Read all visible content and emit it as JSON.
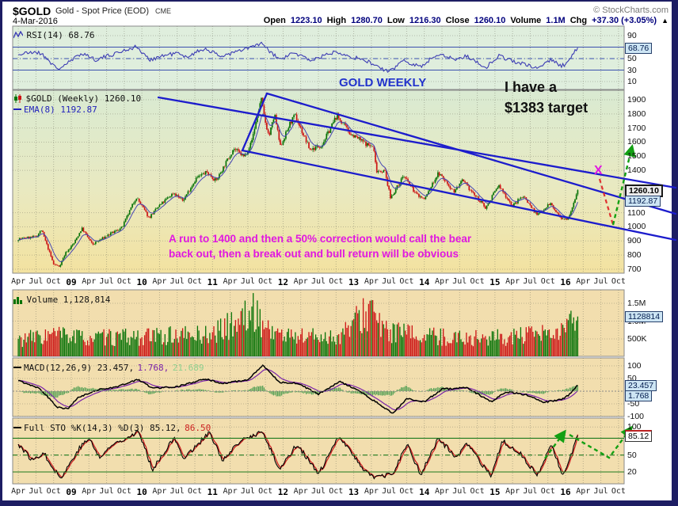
{
  "header": {
    "symbol": "$GOLD",
    "title": "Gold - Spot Price (EOD)",
    "exchange": "CME",
    "source": "© StockCharts.com",
    "date": "4-Mar-2016",
    "quote": {
      "open_label": "Open",
      "open_value": "1223.10",
      "high_label": "High",
      "high_value": "1280.70",
      "low_label": "Low",
      "low_value": "1216.30",
      "close_label": "Close",
      "close_value": "1260.10",
      "volume_label": "Volume",
      "volume_value": "1.1M",
      "chg_label": "Chg",
      "chg_value": "+37.30 (+3.05%)",
      "chg_arrow": "▲"
    }
  },
  "panels": {
    "rsi": {
      "legend": "RSI(14) 68.76",
      "callout": "68.76",
      "yticks": [
        {
          "label": "90",
          "v": 90
        },
        {
          "label": "50",
          "v": 50
        },
        {
          "label": "30",
          "v": 30
        },
        {
          "label": "10",
          "v": 10
        }
      ]
    },
    "main": {
      "legend_symbol": "$GOLD (Weekly) 1260.10",
      "legend_ema": "EMA(8) 1192.87",
      "callout_close": "1260.10",
      "callout_ema": "1192.87",
      "yticks": [
        {
          "label": "1900",
          "v": 1900
        },
        {
          "label": "1800",
          "v": 1800
        },
        {
          "label": "1700",
          "v": 1700
        },
        {
          "label": "1600",
          "v": 1600
        },
        {
          "label": "1500",
          "v": 1500
        },
        {
          "label": "1400",
          "v": 1400
        },
        {
          "label": "1100",
          "v": 1100
        },
        {
          "label": "1000",
          "v": 1000
        },
        {
          "label": "900",
          "v": 900
        },
        {
          "label": "800",
          "v": 800
        },
        {
          "label": "700",
          "v": 700
        }
      ]
    },
    "volume": {
      "legend": "Volume 1,128,814",
      "callout": "1128814",
      "yticks": [
        {
          "label": "1.5M",
          "v": 1500000
        },
        {
          "label": "1.0M",
          "v": 1000000
        },
        {
          "label": "500K",
          "v": 500000
        }
      ]
    },
    "macd": {
      "legend_main": "MACD(12,26,9) 23.457,",
      "legend_signal": "1.768,",
      "legend_hist": "21.689",
      "callout_macd": "23.457",
      "callout_signal": "1.768",
      "yticks": [
        {
          "label": "100",
          "v": 100
        },
        {
          "label": "50",
          "v": 50
        },
        {
          "label": "-50",
          "v": -50
        },
        {
          "label": "-100",
          "v": -100
        }
      ]
    },
    "sto": {
      "legend_main": "Full STO %K(14,3) %D(3) 85.12,",
      "legend_d": "86.50",
      "callout": "85.12",
      "yticks": [
        {
          "label": "100",
          "v": 100
        },
        {
          "label": "50",
          "v": 50
        },
        {
          "label": "20",
          "v": 20
        }
      ]
    }
  },
  "annotations": {
    "gold_weekly": "GOLD WEEKLY",
    "target_line1": "I have a",
    "target_line2": "$1383 target",
    "note_line1": "A run to 1400 and then a 50% correction would call the bear",
    "note_line2": "back out, then a break out and bull return will be obvious",
    "x_marker": "X"
  },
  "xaxis": {
    "start": 2008.25,
    "step": 0.25,
    "labels": [
      "Apr",
      "Jul",
      "Oct",
      "09",
      "Apr",
      "Jul",
      "Oct",
      "10",
      "Apr",
      "Jul",
      "Oct",
      "11",
      "Apr",
      "Jul",
      "Oct",
      "12",
      "Apr",
      "Jul",
      "Oct",
      "13",
      "Apr",
      "Jul",
      "Oct",
      "14",
      "Apr",
      "Jul",
      "Oct",
      "15",
      "Apr",
      "Jul",
      "Oct",
      "16",
      "Apr",
      "Jul",
      "Oct"
    ]
  },
  "colors": {
    "candle_up": "#067206",
    "candle_down": "#cc1414",
    "ema": "#4646b4",
    "channel_blue": "#1c1ccc",
    "rsi_line": "#3c3cb4",
    "macd_line": "#000000",
    "macd_signal": "#7a22aa",
    "macd_hist": "#55a055",
    "sto_k": "#000000",
    "sto_d": "#cc2222",
    "annotation_magenta": "#e018e0",
    "annotation_blue": "#2233cc",
    "arrow_green": "#13a013",
    "arrow_red": "#e03030",
    "panel_green": "#dfeedd",
    "panel_tan": "#f2deae",
    "main_top": "#d9ead2",
    "main_bottom": "#f3e2a0"
  },
  "chart_data": [
    {
      "id": "price",
      "type": "candlestick",
      "title": "$GOLD Gold - Spot Price (EOD) Weekly",
      "x_range": [
        2008.17,
        2016.83
      ],
      "ylim": [
        672,
        1967
      ],
      "yticks": [
        700,
        800,
        900,
        1000,
        1100,
        1400,
        1500,
        1600,
        1700,
        1800,
        1900
      ],
      "last_close": 1260.1,
      "ema8_last": 1192.87,
      "keypoints": [
        [
          2008.25,
          915
        ],
        [
          2008.5,
          930
        ],
        [
          2008.58,
          978
        ],
        [
          2008.75,
          735
        ],
        [
          2008.83,
          720
        ],
        [
          2008.92,
          815
        ],
        [
          2009.04,
          885
        ],
        [
          2009.15,
          990
        ],
        [
          2009.3,
          875
        ],
        [
          2009.5,
          935
        ],
        [
          2009.72,
          995
        ],
        [
          2009.92,
          1212
        ],
        [
          2010.1,
          1065
        ],
        [
          2010.25,
          1150
        ],
        [
          2010.45,
          1242
        ],
        [
          2010.58,
          1185
        ],
        [
          2010.77,
          1345
        ],
        [
          2010.92,
          1388
        ],
        [
          2011.05,
          1325
        ],
        [
          2011.3,
          1555
        ],
        [
          2011.45,
          1495
        ],
        [
          2011.55,
          1598
        ],
        [
          2011.69,
          1908
        ],
        [
          2011.74,
          1760
        ],
        [
          2011.8,
          1640
        ],
        [
          2011.88,
          1795
        ],
        [
          2011.96,
          1565
        ],
        [
          2012.1,
          1735
        ],
        [
          2012.17,
          1788
        ],
        [
          2012.38,
          1545
        ],
        [
          2012.55,
          1580
        ],
        [
          2012.76,
          1788
        ],
        [
          2012.95,
          1662
        ],
        [
          2013.2,
          1580
        ],
        [
          2013.28,
          1565
        ],
        [
          2013.32,
          1400
        ],
        [
          2013.44,
          1395
        ],
        [
          2013.52,
          1205
        ],
        [
          2013.65,
          1310
        ],
        [
          2013.7,
          1365
        ],
        [
          2013.88,
          1235
        ],
        [
          2014.0,
          1195
        ],
        [
          2014.2,
          1382
        ],
        [
          2014.42,
          1250
        ],
        [
          2014.54,
          1325
        ],
        [
          2014.73,
          1215
        ],
        [
          2014.87,
          1135
        ],
        [
          2015.05,
          1295
        ],
        [
          2015.25,
          1148
        ],
        [
          2015.4,
          1222
        ],
        [
          2015.6,
          1082
        ],
        [
          2015.78,
          1168
        ],
        [
          2015.95,
          1046
        ],
        [
          2016.03,
          1062
        ],
        [
          2016.08,
          1120
        ],
        [
          2016.17,
          1260.1
        ]
      ]
    },
    {
      "id": "rsi",
      "type": "line",
      "title": "RSI(14)",
      "x_range": [
        2008.17,
        2016.83
      ],
      "ylim": [
        0,
        100
      ],
      "levels": [
        70,
        50,
        30
      ],
      "last": 68.76,
      "keypoints": [
        [
          2008.25,
          57
        ],
        [
          2008.5,
          62
        ],
        [
          2008.62,
          55
        ],
        [
          2008.8,
          31
        ],
        [
          2009.0,
          46
        ],
        [
          2009.15,
          60
        ],
        [
          2009.35,
          48
        ],
        [
          2009.6,
          58
        ],
        [
          2009.92,
          71
        ],
        [
          2010.1,
          48
        ],
        [
          2010.3,
          55
        ],
        [
          2010.5,
          60
        ],
        [
          2010.6,
          52
        ],
        [
          2010.9,
          68
        ],
        [
          2011.1,
          54
        ],
        [
          2011.35,
          62
        ],
        [
          2011.69,
          76
        ],
        [
          2011.85,
          58
        ],
        [
          2011.96,
          48
        ],
        [
          2012.15,
          60
        ],
        [
          2012.4,
          47
        ],
        [
          2012.76,
          63
        ],
        [
          2013.0,
          52
        ],
        [
          2013.2,
          45
        ],
        [
          2013.5,
          26
        ],
        [
          2013.7,
          47
        ],
        [
          2013.95,
          36
        ],
        [
          2014.2,
          59
        ],
        [
          2014.45,
          48
        ],
        [
          2014.6,
          55
        ],
        [
          2014.87,
          34
        ],
        [
          2015.05,
          55
        ],
        [
          2015.3,
          44
        ],
        [
          2015.6,
          33
        ],
        [
          2015.78,
          48
        ],
        [
          2015.95,
          37
        ],
        [
          2016.03,
          44
        ],
        [
          2016.17,
          68.76
        ]
      ]
    },
    {
      "id": "volume",
      "type": "bar",
      "title": "Volume",
      "x_range": [
        2008.17,
        2016.83
      ],
      "ylim": [
        0,
        1880000
      ],
      "last": 1128814,
      "keypoints": [
        [
          2008.25,
          520000
        ],
        [
          2008.8,
          680000
        ],
        [
          2009.2,
          560000
        ],
        [
          2010.0,
          600000
        ],
        [
          2011.0,
          680000
        ],
        [
          2011.6,
          1350000
        ],
        [
          2011.75,
          900000
        ],
        [
          2012.0,
          640000
        ],
        [
          2012.8,
          600000
        ],
        [
          2013.25,
          1500000
        ],
        [
          2013.4,
          800000
        ],
        [
          2014.0,
          620000
        ],
        [
          2014.8,
          560000
        ],
        [
          2015.4,
          620000
        ],
        [
          2015.9,
          700000
        ],
        [
          2016.05,
          950000
        ],
        [
          2016.17,
          1128814
        ]
      ]
    },
    {
      "id": "macd",
      "type": "line",
      "title": "MACD(12,26,9)",
      "x_range": [
        2008.17,
        2016.83
      ],
      "ylim": [
        -100,
        131
      ],
      "last_macd": 23.457,
      "last_signal": 1.768,
      "last_hist": 21.689,
      "keypoints": [
        [
          2008.25,
          42
        ],
        [
          2008.55,
          12
        ],
        [
          2008.8,
          -62
        ],
        [
          2008.95,
          -70
        ],
        [
          2009.1,
          -25
        ],
        [
          2009.4,
          8
        ],
        [
          2009.6,
          14
        ],
        [
          2009.95,
          46
        ],
        [
          2010.15,
          12
        ],
        [
          2010.5,
          18
        ],
        [
          2010.9,
          48
        ],
        [
          2011.15,
          30
        ],
        [
          2011.5,
          45
        ],
        [
          2011.72,
          102
        ],
        [
          2011.95,
          35
        ],
        [
          2012.2,
          32
        ],
        [
          2012.5,
          -12
        ],
        [
          2012.8,
          38
        ],
        [
          2013.05,
          5
        ],
        [
          2013.3,
          -40
        ],
        [
          2013.55,
          -88
        ],
        [
          2013.75,
          -30
        ],
        [
          2014.0,
          -42
        ],
        [
          2014.25,
          8
        ],
        [
          2014.6,
          14
        ],
        [
          2014.95,
          -42
        ],
        [
          2015.15,
          -2
        ],
        [
          2015.45,
          -15
        ],
        [
          2015.7,
          -44
        ],
        [
          2015.95,
          -32
        ],
        [
          2016.05,
          -15
        ],
        [
          2016.17,
          23.457
        ]
      ]
    },
    {
      "id": "sto",
      "type": "line",
      "title": "Full STO %K(14,3) %D(3)",
      "x_range": [
        2008.17,
        2016.83
      ],
      "ylim": [
        0,
        100
      ],
      "levels": [
        80,
        50,
        20
      ],
      "last_k": 85.12,
      "last_d": 86.5,
      "keypoints": [
        [
          2008.25,
          70
        ],
        [
          2008.45,
          40
        ],
        [
          2008.6,
          55
        ],
        [
          2008.85,
          8
        ],
        [
          2009.1,
          60
        ],
        [
          2009.25,
          80
        ],
        [
          2009.4,
          45
        ],
        [
          2009.6,
          70
        ],
        [
          2009.95,
          92
        ],
        [
          2010.15,
          25
        ],
        [
          2010.45,
          80
        ],
        [
          2010.6,
          45
        ],
        [
          2010.95,
          90
        ],
        [
          2011.15,
          40
        ],
        [
          2011.4,
          75
        ],
        [
          2011.7,
          92
        ],
        [
          2011.95,
          25
        ],
        [
          2012.2,
          70
        ],
        [
          2012.5,
          15
        ],
        [
          2012.8,
          85
        ],
        [
          2013.1,
          30
        ],
        [
          2013.3,
          10
        ],
        [
          2013.55,
          15
        ],
        [
          2013.75,
          70
        ],
        [
          2013.95,
          15
        ],
        [
          2014.2,
          80
        ],
        [
          2014.45,
          45
        ],
        [
          2014.6,
          70
        ],
        [
          2014.95,
          10
        ],
        [
          2015.1,
          75
        ],
        [
          2015.35,
          55
        ],
        [
          2015.6,
          12
        ],
        [
          2015.8,
          70
        ],
        [
          2015.95,
          15
        ],
        [
          2016.05,
          40
        ],
        [
          2016.17,
          85.12
        ]
      ]
    }
  ]
}
